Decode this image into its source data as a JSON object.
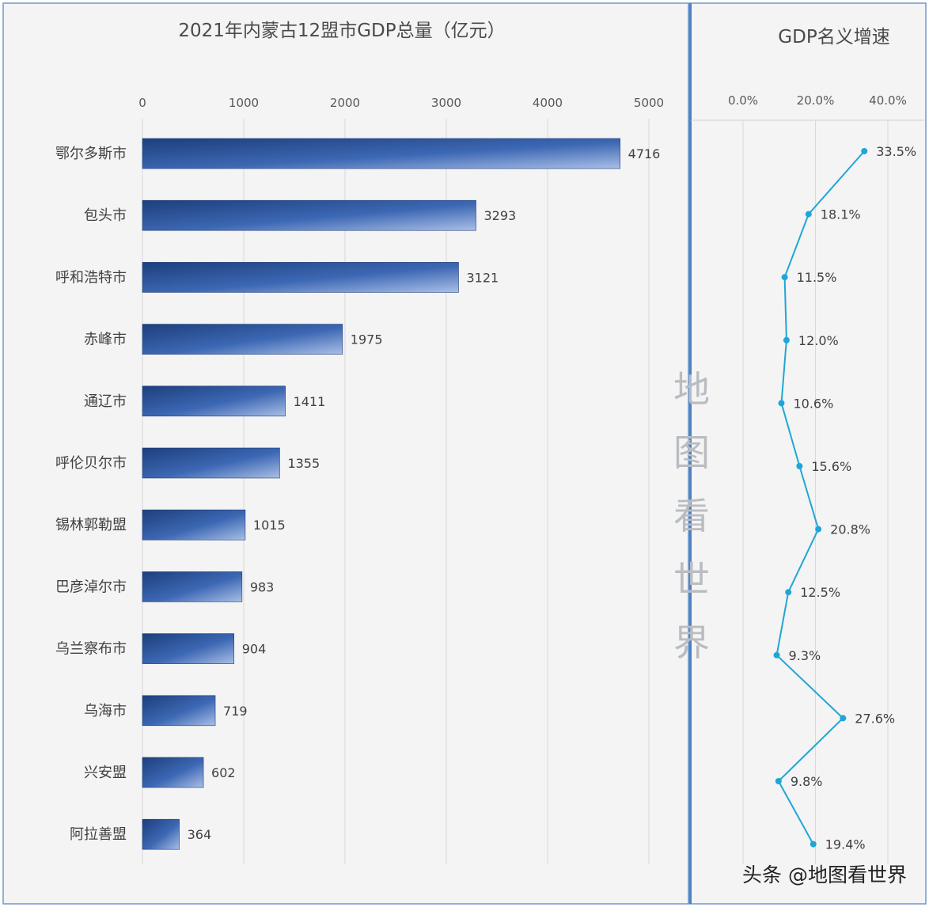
{
  "chart_data": [
    {
      "type": "bar",
      "orientation": "horizontal",
      "title": "2021年内蒙古12盟市GDP总量（亿元）",
      "categories": [
        "鄂尔多斯市",
        "包头市",
        "呼和浩特市",
        "赤峰市",
        "通辽市",
        "呼伦贝尔市",
        "锡林郭勒盟",
        "巴彦淖尔市",
        "乌兰察布市",
        "乌海市",
        "兴安盟",
        "阿拉善盟"
      ],
      "values": [
        4716,
        3293,
        3121,
        1975,
        1411,
        1355,
        1015,
        983,
        904,
        719,
        602,
        364
      ],
      "xlim": [
        0,
        5000
      ],
      "xticks": [
        "0",
        "1000",
        "2000",
        "3000",
        "4000",
        "5000"
      ],
      "tick_values": [
        0,
        1000,
        2000,
        3000,
        4000,
        5000
      ],
      "grid": true,
      "axis_position": "top",
      "bar_color": "#2f5597"
    },
    {
      "type": "line",
      "title": "GDP名义增速",
      "values": [
        33.5,
        18.1,
        11.5,
        12.0,
        10.6,
        15.6,
        20.8,
        12.5,
        9.3,
        27.6,
        9.8,
        19.4
      ],
      "value_labels": [
        "33.5%",
        "18.1%",
        "11.5%",
        "12.0%",
        "10.6%",
        "15.6%",
        "20.8%",
        "12.5%",
        "9.3%",
        "27.6%",
        "9.8%",
        "19.4%"
      ],
      "xticks": [
        "0.0%",
        "20.0%",
        "40.0%"
      ],
      "tick_values": [
        0,
        20,
        40
      ],
      "grid": true,
      "axis_position": "top",
      "line_color": "#1fa6d6"
    }
  ],
  "watermark": [
    "地",
    "图",
    "看",
    "世",
    "界"
  ],
  "credit": "头条 @地图看世界"
}
